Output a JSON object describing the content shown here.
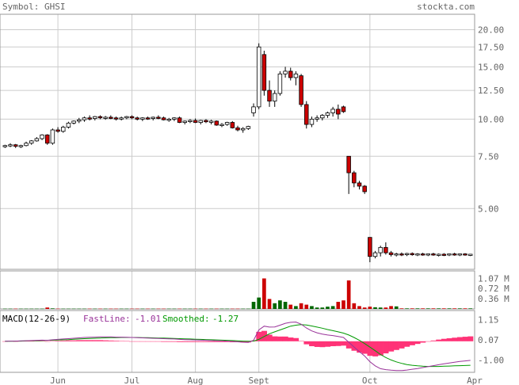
{
  "header": {
    "symbol_label": "Symbol:",
    "symbol_value": "GHSI",
    "site": "stockta.com"
  },
  "colors": {
    "up_candle": "#ffffff",
    "down_candle": "#cc0000",
    "volume_up": "#006600",
    "volume_down": "#cc0000",
    "macd_fast": "#993399",
    "macd_smoothed": "#009900",
    "macd_hist": "#ff3377",
    "grid": "#cccccc",
    "axis_text": "#666666"
  },
  "chart_data": [
    {
      "type": "candlestick",
      "name": "price",
      "scale": "log",
      "ylim": [
        3.2,
        22.0
      ],
      "y_ticks": [
        "20.00",
        "17.50",
        "15.00",
        "12.50",
        "10.00",
        "7.50",
        "5.00"
      ],
      "x_ticks": [
        "Jun",
        "Jul",
        "Aug",
        "Sept",
        "Oct",
        "Apr"
      ],
      "grid": true,
      "ohlc": [
        [
          8.1,
          8.2,
          8.0,
          8.15
        ],
        [
          8.15,
          8.3,
          8.05,
          8.2
        ],
        [
          8.2,
          8.25,
          8.0,
          8.1
        ],
        [
          8.1,
          8.2,
          8.0,
          8.15
        ],
        [
          8.15,
          8.4,
          8.1,
          8.3
        ],
        [
          8.3,
          8.5,
          8.2,
          8.45
        ],
        [
          8.45,
          8.7,
          8.4,
          8.6
        ],
        [
          8.6,
          8.9,
          8.5,
          8.85
        ],
        [
          8.85,
          8.9,
          8.2,
          8.3
        ],
        [
          8.3,
          9.3,
          8.2,
          9.2
        ],
        [
          9.2,
          9.4,
          9.0,
          9.1
        ],
        [
          9.1,
          9.5,
          9.0,
          9.4
        ],
        [
          9.4,
          9.8,
          9.3,
          9.7
        ],
        [
          9.7,
          9.9,
          9.6,
          9.85
        ],
        [
          9.85,
          10.1,
          9.7,
          9.95
        ],
        [
          9.95,
          10.2,
          9.8,
          10.1
        ],
        [
          10.1,
          10.3,
          9.9,
          10.05
        ],
        [
          10.05,
          10.25,
          9.9,
          10.2
        ],
        [
          10.2,
          10.3,
          10.0,
          10.1
        ],
        [
          10.1,
          10.25,
          9.95,
          10.15
        ],
        [
          10.15,
          10.3,
          10.0,
          10.1
        ],
        [
          10.1,
          10.2,
          9.9,
          10.05
        ],
        [
          10.05,
          10.2,
          9.9,
          10.1
        ],
        [
          10.1,
          10.25,
          10.0,
          10.2
        ],
        [
          10.2,
          10.3,
          10.0,
          10.1
        ],
        [
          10.1,
          10.2,
          9.9,
          10.0
        ],
        [
          10.0,
          10.15,
          9.85,
          10.1
        ],
        [
          10.1,
          10.2,
          9.95,
          10.05
        ],
        [
          10.05,
          10.2,
          9.9,
          10.15
        ],
        [
          10.15,
          10.3,
          10.0,
          10.1
        ],
        [
          10.1,
          10.2,
          9.9,
          9.95
        ],
        [
          9.95,
          10.1,
          9.8,
          10.0
        ],
        [
          10.0,
          10.15,
          9.85,
          10.1
        ],
        [
          10.1,
          10.2,
          9.7,
          9.75
        ],
        [
          9.75,
          9.9,
          9.6,
          9.85
        ],
        [
          9.85,
          10.0,
          9.7,
          9.9
        ],
        [
          9.9,
          10.05,
          9.7,
          9.75
        ],
        [
          9.75,
          9.95,
          9.6,
          9.9
        ],
        [
          9.9,
          10.0,
          9.7,
          9.8
        ],
        [
          9.8,
          9.95,
          9.6,
          9.85
        ],
        [
          9.85,
          9.9,
          9.5,
          9.55
        ],
        [
          9.55,
          9.7,
          9.4,
          9.6
        ],
        [
          9.6,
          9.8,
          9.5,
          9.75
        ],
        [
          9.75,
          9.85,
          9.3,
          9.35
        ],
        [
          9.35,
          9.5,
          9.1,
          9.2
        ],
        [
          9.2,
          9.4,
          9.0,
          9.3
        ],
        [
          9.3,
          9.5,
          9.2,
          9.45
        ],
        [
          10.5,
          11.3,
          10.2,
          11.0
        ],
        [
          11.0,
          18.0,
          10.8,
          17.5
        ],
        [
          16.5,
          17.0,
          12.0,
          12.5
        ],
        [
          12.5,
          13.5,
          11.0,
          11.5
        ],
        [
          11.5,
          12.5,
          11.0,
          12.2
        ],
        [
          12.2,
          14.5,
          12.0,
          14.2
        ],
        [
          14.2,
          15.0,
          13.8,
          14.5
        ],
        [
          14.5,
          14.9,
          13.5,
          13.8
        ],
        [
          13.8,
          14.5,
          13.0,
          14.2
        ],
        [
          14.0,
          14.2,
          11.0,
          11.2
        ],
        [
          11.2,
          11.5,
          9.3,
          9.6
        ],
        [
          9.6,
          10.2,
          9.4,
          10.0
        ],
        [
          10.0,
          10.3,
          9.8,
          10.1
        ],
        [
          10.1,
          10.4,
          9.9,
          10.3
        ],
        [
          10.3,
          10.6,
          10.1,
          10.5
        ],
        [
          10.5,
          11.0,
          10.2,
          10.8
        ],
        [
          10.8,
          11.2,
          10.0,
          10.4
        ],
        [
          11.0,
          11.1,
          10.5,
          10.6
        ],
        [
          7.5,
          7.5,
          5.6,
          6.6
        ],
        [
          6.6,
          6.7,
          5.9,
          6.1
        ],
        [
          6.1,
          6.2,
          5.8,
          5.95
        ],
        [
          5.95,
          6.0,
          5.6,
          5.7
        ],
        [
          4.0,
          4.0,
          3.3,
          3.45
        ],
        [
          3.45,
          3.6,
          3.4,
          3.55
        ],
        [
          3.55,
          3.75,
          3.45,
          3.7
        ],
        [
          3.7,
          3.85,
          3.5,
          3.55
        ],
        [
          3.55,
          3.6,
          3.45,
          3.5
        ],
        [
          3.5,
          3.55,
          3.45,
          3.52
        ],
        [
          3.52,
          3.56,
          3.46,
          3.5
        ],
        [
          3.5,
          3.55,
          3.46,
          3.53
        ],
        [
          3.53,
          3.56,
          3.47,
          3.5
        ],
        [
          3.5,
          3.54,
          3.46,
          3.52
        ],
        [
          3.52,
          3.55,
          3.47,
          3.5
        ],
        [
          3.5,
          3.53,
          3.46,
          3.52
        ],
        [
          3.52,
          3.55,
          3.47,
          3.5
        ],
        [
          3.5,
          3.53,
          3.45,
          3.51
        ],
        [
          3.51,
          3.54,
          3.46,
          3.5
        ],
        [
          3.5,
          3.53,
          3.46,
          3.52
        ],
        [
          3.52,
          3.55,
          3.47,
          3.5
        ],
        [
          3.5,
          3.53,
          3.46,
          3.52
        ],
        [
          3.52,
          3.54,
          3.47,
          3.5
        ],
        [
          3.5,
          3.52,
          3.46,
          3.51
        ]
      ]
    },
    {
      "type": "bar",
      "name": "volume",
      "unit": "M",
      "ylim": [
        0,
        1.25
      ],
      "y_ticks": [
        "1.07 M",
        "0.72 M",
        "0.36 M"
      ],
      "values": [
        0.01,
        0.01,
        0.01,
        0.01,
        0.01,
        0.01,
        0.01,
        0.01,
        0.05,
        0.02,
        0.01,
        0.01,
        0.01,
        0.01,
        0.01,
        0.01,
        0.01,
        0.01,
        0.01,
        0.01,
        0.01,
        0.01,
        0.01,
        0.01,
        0.01,
        0.01,
        0.01,
        0.01,
        0.01,
        0.01,
        0.01,
        0.01,
        0.01,
        0.01,
        0.01,
        0.01,
        0.01,
        0.01,
        0.01,
        0.01,
        0.01,
        0.01,
        0.01,
        0.01,
        0.01,
        0.01,
        0.01,
        0.25,
        0.4,
        1.07,
        0.35,
        0.2,
        0.3,
        0.25,
        0.15,
        0.1,
        0.2,
        0.15,
        0.1,
        0.05,
        0.05,
        0.08,
        0.1,
        0.25,
        0.3,
        1.0,
        0.2,
        0.1,
        0.05,
        0.08,
        0.06,
        0.05,
        0.05,
        0.1,
        0.09,
        0.02,
        0.02,
        0.02,
        0.02,
        0.02,
        0.02,
        0.02,
        0.02,
        0.02,
        0.02,
        0.02,
        0.02,
        0.02,
        0.02
      ]
    },
    {
      "type": "line",
      "name": "macd",
      "title": "MACD(12-26-9)",
      "fast_label": "FastLine:",
      "fast_value": "-1.01",
      "smoothed_label": "Smoothed:",
      "smoothed_value": "-1.27",
      "ylim": [
        -1.6,
        1.5
      ],
      "y_ticks": [
        "1.15",
        "0.07",
        "-1.00"
      ],
      "y_tick_values": [
        1.15,
        0.07,
        -1.0
      ],
      "fast": [
        0.0,
        0.01,
        0.01,
        0.02,
        0.03,
        0.04,
        0.05,
        0.06,
        0.05,
        0.08,
        0.1,
        0.12,
        0.14,
        0.16,
        0.18,
        0.2,
        0.21,
        0.22,
        0.23,
        0.23,
        0.23,
        0.22,
        0.22,
        0.21,
        0.2,
        0.19,
        0.18,
        0.17,
        0.16,
        0.15,
        0.14,
        0.13,
        0.12,
        0.1,
        0.09,
        0.08,
        0.07,
        0.06,
        0.05,
        0.04,
        0.03,
        0.02,
        0.01,
        -0.01,
        -0.03,
        -0.05,
        -0.06,
        0.05,
        0.6,
        0.8,
        0.75,
        0.76,
        0.85,
        0.95,
        1.0,
        1.02,
        0.9,
        0.7,
        0.55,
        0.45,
        0.38,
        0.33,
        0.3,
        0.25,
        0.2,
        -0.05,
        -0.3,
        -0.55,
        -0.78,
        -1.08,
        -1.3,
        -1.45,
        -1.5,
        -1.53,
        -1.55,
        -1.55,
        -1.52,
        -1.48,
        -1.44,
        -1.39,
        -1.34,
        -1.29,
        -1.24,
        -1.19,
        -1.15,
        -1.11,
        -1.07,
        -1.04,
        -1.01
      ],
      "smoothed": [
        0.0,
        0.0,
        0.01,
        0.01,
        0.02,
        0.03,
        0.03,
        0.04,
        0.05,
        0.06,
        0.07,
        0.08,
        0.09,
        0.11,
        0.12,
        0.14,
        0.15,
        0.16,
        0.17,
        0.18,
        0.19,
        0.19,
        0.2,
        0.2,
        0.2,
        0.2,
        0.19,
        0.19,
        0.18,
        0.17,
        0.17,
        0.16,
        0.15,
        0.14,
        0.13,
        0.12,
        0.11,
        0.1,
        0.09,
        0.08,
        0.07,
        0.06,
        0.05,
        0.04,
        0.02,
        0.01,
        0.0,
        0.01,
        0.1,
        0.25,
        0.4,
        0.5,
        0.6,
        0.7,
        0.8,
        0.85,
        0.88,
        0.86,
        0.81,
        0.75,
        0.69,
        0.62,
        0.56,
        0.5,
        0.43,
        0.33,
        0.2,
        0.05,
        -0.12,
        -0.31,
        -0.5,
        -0.7,
        -0.86,
        -0.99,
        -1.09,
        -1.17,
        -1.23,
        -1.27,
        -1.3,
        -1.32,
        -1.33,
        -1.33,
        -1.33,
        -1.32,
        -1.31,
        -1.3,
        -1.29,
        -1.28,
        -1.27
      ]
    }
  ]
}
